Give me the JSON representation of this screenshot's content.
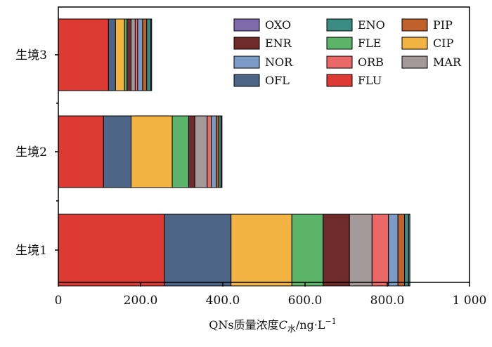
{
  "chart_data": {
    "type": "bar",
    "orientation": "horizontal",
    "stacked": true,
    "categories": [
      "生境1",
      "生境2",
      "生境3"
    ],
    "series": [
      {
        "name": "FLU",
        "color": "#dd3a34",
        "values": [
          258,
          110,
          122
        ]
      },
      {
        "name": "OFL",
        "color": "#4d6586",
        "values": [
          162,
          67,
          17
        ]
      },
      {
        "name": "CIP",
        "color": "#f2b342",
        "values": [
          148,
          100,
          22
        ]
      },
      {
        "name": "FLE",
        "color": "#5bb46a",
        "values": [
          76,
          40,
          6
        ]
      },
      {
        "name": "ENR",
        "color": "#6e2b2a",
        "values": [
          64,
          15,
          10
        ]
      },
      {
        "name": "MAR",
        "color": "#a3999a",
        "values": [
          55,
          30,
          10
        ]
      },
      {
        "name": "ORB",
        "color": "#ea6868",
        "values": [
          40,
          10,
          6
        ]
      },
      {
        "name": "NOR",
        "color": "#7c9ac6",
        "values": [
          23,
          12,
          12
        ]
      },
      {
        "name": "PIP",
        "color": "#c0612c",
        "values": [
          16,
          6,
          10
        ]
      },
      {
        "name": "ENO",
        "color": "#3a8c83",
        "values": [
          10,
          6,
          10
        ]
      },
      {
        "name": "OXO",
        "color": "#7f6aac",
        "values": [
          3,
          2,
          2
        ]
      }
    ],
    "legend_order": [
      "OXO",
      "ENO",
      "PIP",
      "ENR",
      "FLE",
      "CIP",
      "NOR",
      "ORB",
      "MAR",
      "OFL",
      "FLU"
    ],
    "legend_position": "top-right",
    "xlim": [
      0,
      1000
    ],
    "xticks": [
      "0",
      "200.0",
      "400.0",
      "600.0",
      "800.0",
      "1 000"
    ],
    "xtick_values": [
      0,
      200,
      400,
      600,
      800,
      1000
    ],
    "xlabel": {
      "prefix": "QNs质量浓度",
      "symbol": "C",
      "subscript": "水",
      "unit": "/ng·L",
      "superscript": "−1"
    },
    "ylabel": "",
    "title": "",
    "grid": false
  }
}
